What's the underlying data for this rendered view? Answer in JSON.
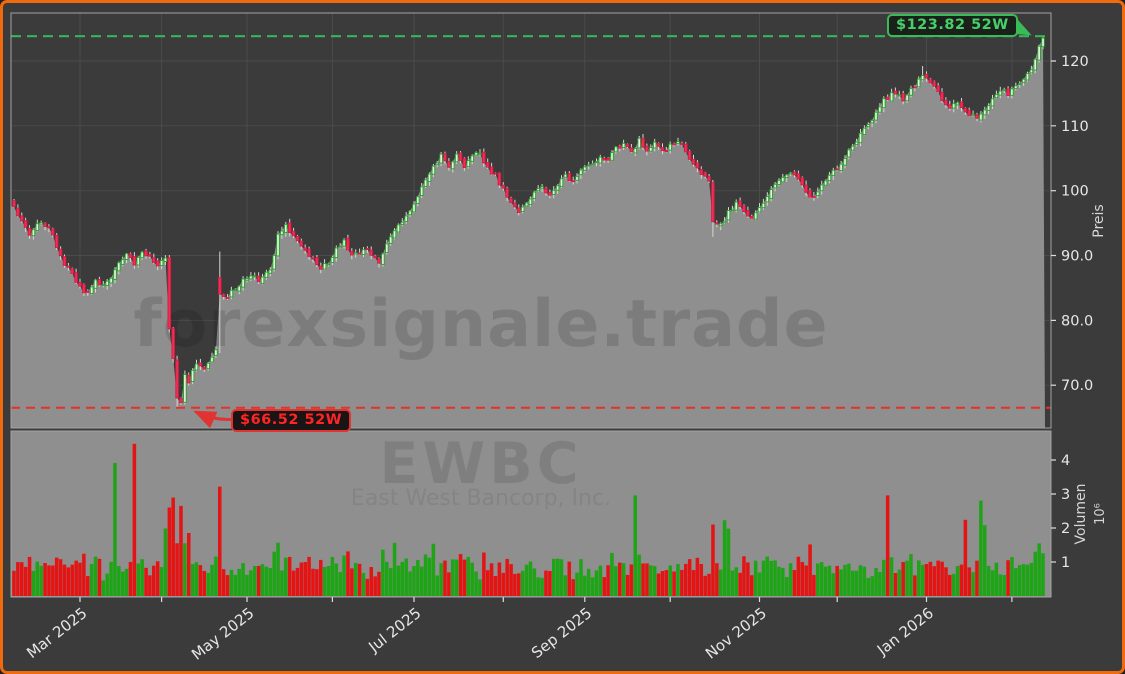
{
  "window": {
    "watermark_domain": "forexsignale.trade",
    "ticker": "EWBC",
    "company": "East West Bancorp, Inc."
  },
  "annotations": {
    "high": {
      "label": "$123.82 52W",
      "value": 123.82,
      "color": "#3bba58"
    },
    "low": {
      "label": "$66.52 52W",
      "value": 66.52,
      "color": "#e23333"
    }
  },
  "axes": {
    "price": {
      "label": "Preis",
      "tick_labels": [
        "70.0",
        "80.0",
        "90.0",
        "100",
        "110",
        "120"
      ],
      "tick_values": [
        70,
        80,
        90,
        100,
        110,
        120
      ]
    },
    "volume": {
      "label": "Volumen",
      "scale_label": "10⁶",
      "tick_labels": [
        "1",
        "2",
        "3",
        "4"
      ],
      "tick_values": [
        1,
        2,
        3,
        4
      ]
    },
    "x": {
      "labeled_ticks": [
        "Mar 2025",
        "May 2025",
        "Jul 2025",
        "Sep 2025",
        "Nov 2025",
        "Jan 2026"
      ]
    }
  },
  "chart_data": {
    "type": "candlestick",
    "panels": [
      "price",
      "volume"
    ],
    "frequency": "daily-weekdays",
    "date_range": [
      "2025-02-06",
      "2026-02-12"
    ],
    "high_52w": 123.82,
    "low_52w": 66.52,
    "ylim_price": [
      63.4,
      127.4
    ],
    "ylim_volume": [
      0,
      4.76
    ],
    "grid": true,
    "price_keypoints": [
      [
        "2025-02-06",
        97.4
      ],
      [
        "2025-02-10",
        95.0
      ],
      [
        "2025-02-12",
        93.2
      ],
      [
        "2025-02-14",
        95.2
      ],
      [
        "2025-02-19",
        94.6
      ],
      [
        "2025-02-21",
        91.6
      ],
      [
        "2025-02-25",
        88.6
      ],
      [
        "2025-02-27",
        87.0
      ],
      [
        "2025-03-03",
        85.0
      ],
      [
        "2025-03-05",
        84.0
      ],
      [
        "2025-03-07",
        86.0
      ],
      [
        "2025-03-11",
        85.2
      ],
      [
        "2025-03-13",
        86.8
      ],
      [
        "2025-03-17",
        89.0
      ],
      [
        "2025-03-19",
        90.4
      ],
      [
        "2025-03-21",
        88.6
      ],
      [
        "2025-03-25",
        90.6
      ],
      [
        "2025-03-27",
        90.0
      ],
      [
        "2025-03-31",
        88.2
      ],
      [
        "2025-04-02",
        90.0
      ],
      [
        "2025-04-03",
        79.0
      ],
      [
        "2025-04-04",
        74.2
      ],
      [
        "2025-04-07",
        68.2
      ],
      [
        "2025-04-08",
        67.6
      ],
      [
        "2025-04-09",
        71.8
      ],
      [
        "2025-04-10",
        70.4
      ],
      [
        "2025-04-14",
        73.6
      ],
      [
        "2025-04-16",
        72.6
      ],
      [
        "2025-04-21",
        75.2
      ],
      [
        "2025-04-22",
        84.4
      ],
      [
        "2025-04-24",
        83.6
      ],
      [
        "2025-04-29",
        85.6
      ],
      [
        "2025-05-02",
        87.2
      ],
      [
        "2025-05-06",
        86.2
      ],
      [
        "2025-05-09",
        87.6
      ],
      [
        "2025-05-13",
        93.2
      ],
      [
        "2025-05-15",
        94.4
      ],
      [
        "2025-05-19",
        93.0
      ],
      [
        "2025-05-22",
        90.6
      ],
      [
        "2025-05-28",
        87.8
      ],
      [
        "2025-05-30",
        89.0
      ],
      [
        "2025-06-03",
        91.0
      ],
      [
        "2025-06-05",
        92.2
      ],
      [
        "2025-06-09",
        89.8
      ],
      [
        "2025-06-12",
        91.0
      ],
      [
        "2025-06-16",
        90.2
      ],
      [
        "2025-06-18",
        89.2
      ],
      [
        "2025-06-23",
        92.6
      ],
      [
        "2025-06-25",
        94.6
      ],
      [
        "2025-06-27",
        96.0
      ],
      [
        "2025-07-01",
        97.6
      ],
      [
        "2025-07-03",
        100.2
      ],
      [
        "2025-07-08",
        103.6
      ],
      [
        "2025-07-10",
        105.6
      ],
      [
        "2025-07-14",
        104.0
      ],
      [
        "2025-07-16",
        105.4
      ],
      [
        "2025-07-18",
        103.4
      ],
      [
        "2025-07-22",
        105.2
      ],
      [
        "2025-07-24",
        105.8
      ],
      [
        "2025-07-28",
        103.6
      ],
      [
        "2025-07-30",
        102.2
      ],
      [
        "2025-08-01",
        100.2
      ],
      [
        "2025-08-05",
        98.4
      ],
      [
        "2025-08-07",
        96.9
      ],
      [
        "2025-08-11",
        98.0
      ],
      [
        "2025-08-13",
        99.8
      ],
      [
        "2025-08-15",
        100.4
      ],
      [
        "2025-08-19",
        99.4
      ],
      [
        "2025-08-21",
        101.0
      ],
      [
        "2025-08-25",
        102.2
      ],
      [
        "2025-08-27",
        101.4
      ],
      [
        "2025-08-29",
        102.8
      ],
      [
        "2025-09-03",
        104.2
      ],
      [
        "2025-09-05",
        105.4
      ],
      [
        "2025-09-09",
        104.8
      ],
      [
        "2025-09-11",
        106.4
      ],
      [
        "2025-09-15",
        107.2
      ],
      [
        "2025-09-17",
        106.0
      ],
      [
        "2025-09-19",
        107.8
      ],
      [
        "2025-09-23",
        106.4
      ],
      [
        "2025-09-25",
        107.2
      ],
      [
        "2025-09-29",
        105.8
      ],
      [
        "2025-10-01",
        107.0
      ],
      [
        "2025-10-03",
        107.4
      ],
      [
        "2025-10-07",
        106.0
      ],
      [
        "2025-10-09",
        104.4
      ],
      [
        "2025-10-13",
        102.4
      ],
      [
        "2025-10-15",
        101.4
      ],
      [
        "2025-10-16",
        95.4
      ],
      [
        "2025-10-20",
        94.6
      ],
      [
        "2025-10-22",
        96.6
      ],
      [
        "2025-10-24",
        98.0
      ],
      [
        "2025-10-28",
        97.0
      ],
      [
        "2025-10-30",
        95.8
      ],
      [
        "2025-11-03",
        97.6
      ],
      [
        "2025-11-05",
        99.0
      ],
      [
        "2025-11-07",
        100.6
      ],
      [
        "2025-11-11",
        102.0
      ],
      [
        "2025-11-13",
        103.0
      ],
      [
        "2025-11-17",
        101.6
      ],
      [
        "2025-11-19",
        99.8
      ],
      [
        "2025-11-21",
        98.8
      ],
      [
        "2025-11-25",
        101.0
      ],
      [
        "2025-11-28",
        102.8
      ],
      [
        "2025-12-02",
        104.4
      ],
      [
        "2025-12-04",
        106.0
      ],
      [
        "2025-12-08",
        107.8
      ],
      [
        "2025-12-10",
        109.6
      ],
      [
        "2025-12-12",
        111.2
      ],
      [
        "2025-12-16",
        113.2
      ],
      [
        "2025-12-18",
        114.4
      ],
      [
        "2025-12-22",
        115.2
      ],
      [
        "2025-12-24",
        114.0
      ],
      [
        "2025-12-29",
        116.2
      ],
      [
        "2025-12-31",
        117.6
      ],
      [
        "2026-01-05",
        115.8
      ],
      [
        "2026-01-07",
        114.0
      ],
      [
        "2026-01-09",
        112.6
      ],
      [
        "2026-01-13",
        113.8
      ],
      [
        "2026-01-15",
        112.2
      ],
      [
        "2026-01-20",
        111.2
      ],
      [
        "2026-01-22",
        112.8
      ],
      [
        "2026-01-26",
        114.2
      ],
      [
        "2026-01-28",
        115.6
      ],
      [
        "2026-01-30",
        115.0
      ],
      [
        "2026-02-03",
        116.4
      ],
      [
        "2026-02-05",
        117.4
      ],
      [
        "2026-02-09",
        118.6
      ],
      [
        "2026-02-10",
        120.4
      ],
      [
        "2026-02-11",
        122.2
      ],
      [
        "2026-02-12",
        123.3
      ]
    ],
    "volume_spikes": {
      "2025-03-14": 3.9,
      "2025-03-21": 4.45,
      "2025-04-02": 2.0,
      "2025-04-03": 2.6,
      "2025-04-04": 2.9,
      "2025-04-08": 2.7,
      "2025-04-10": 1.9,
      "2025-04-22": 3.25,
      "2025-05-13": 1.6,
      "2025-06-24": 1.55,
      "2025-07-08": 1.5,
      "2025-09-18": 3.0,
      "2025-10-16": 2.1,
      "2025-10-21": 2.2,
      "2025-10-22": 2.0,
      "2025-11-20": 1.5,
      "2025-12-18": 3.0,
      "2026-01-15": 2.2,
      "2026-01-21": 2.8,
      "2026-01-22": 2.05,
      "2026-02-11": 1.5,
      "2026-02-12": 1.3
    },
    "volume_base_range": [
      0.42,
      1.55
    ],
    "overrides": {
      "2025-04-07": {
        "low": 66.52
      },
      "2025-04-22": {
        "open": 86.6,
        "high": 90.6
      },
      "2025-10-16": {
        "low_extra": 2.2
      },
      "2025-12-31": {
        "high_extra": 1.2
      },
      "2026-02-12": {
        "high": 123.82
      }
    },
    "colors": {
      "background": "#3b3b3b",
      "area_fill": "#8f8f8f",
      "grid": "#4b4b4b",
      "spine": "#a3a3a3",
      "tick_mark": "#dedede",
      "tick_text": "#e6e6e6",
      "axis_label_text": "#d6d6d6",
      "candle_up_edge": "#23a323",
      "candle_up_fill": "#e6f2e6",
      "candle_down_edge": "#d61a44",
      "candle_down_fill": "#ef2f55",
      "wick": "#d6d6d6",
      "volume_up": "#1fa317",
      "volume_down": "#e31414",
      "high_line": "#34b857",
      "low_line": "#e63028",
      "frame_border": "#f06a0e",
      "watermark": "#000000"
    }
  }
}
